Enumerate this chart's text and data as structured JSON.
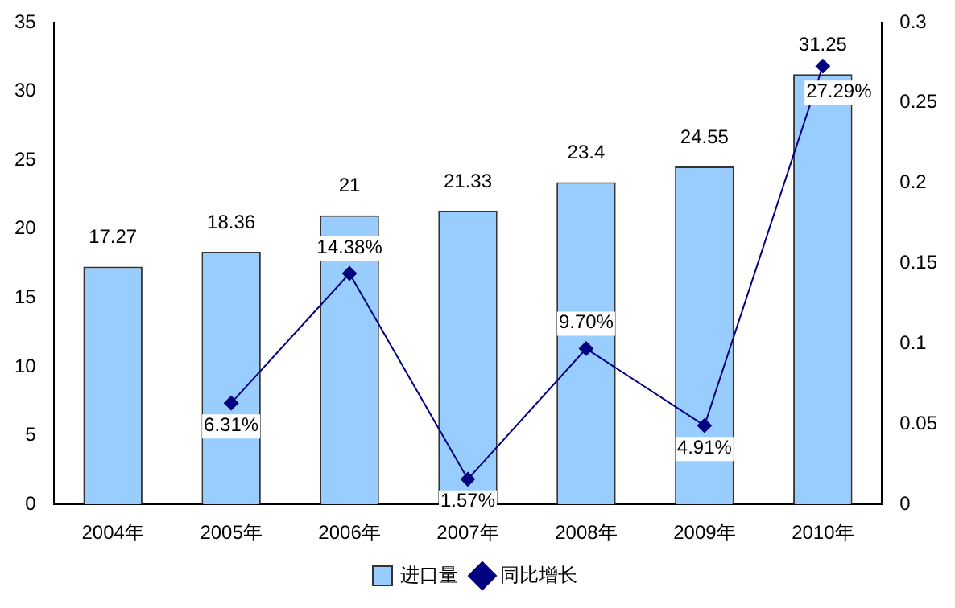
{
  "chart_data": {
    "type": "bar",
    "categories": [
      "2004年",
      "2005年",
      "2006年",
      "2007年",
      "2008年",
      "2009年",
      "2010年"
    ],
    "series": [
      {
        "name": "进口量",
        "color": "#99ccff",
        "values": [
          17.27,
          18.36,
          21,
          21.33,
          23.4,
          24.55,
          31.25
        ]
      },
      {
        "name": "同比增长",
        "type": "line",
        "axis": "y2",
        "color": "#000080",
        "values": [
          null,
          0.0631,
          0.1438,
          0.0157,
          0.097,
          0.0491,
          0.2729
        ],
        "value_labels": [
          null,
          "6.31%",
          "14.38%",
          "1.57%",
          "9.70%",
          "4.91%",
          "27.29%"
        ]
      }
    ],
    "data_labels": true,
    "ylim": [
      0,
      35
    ],
    "yticks": [
      0,
      5,
      10,
      15,
      20,
      25,
      30,
      35
    ],
    "y2lim": [
      0,
      0.3
    ],
    "y2ticks": [
      0,
      0.05,
      0.1,
      0.15,
      0.2,
      0.25,
      0.3
    ],
    "legend": "bottom",
    "grid": false,
    "marker": "diamond",
    "line_style": "solid"
  }
}
